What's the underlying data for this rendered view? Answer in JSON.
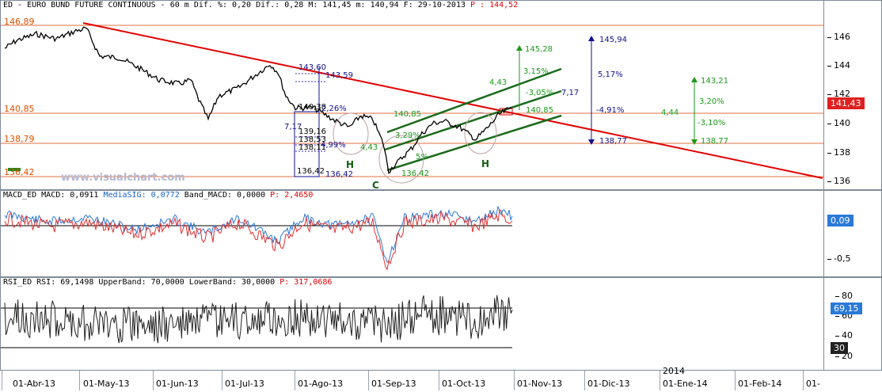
{
  "price": {
    "title_prefix": "ED - EURO BUND FUTURE CONTINUOUS -  60 m Dif. %: 0,20 Dif.: 0,28 M: 141,45 m: 140,94 F: 29-10-2013 ",
    "title_p": "P : 144,52",
    "y_ticks": [
      "146",
      "144",
      "142",
      "140",
      "138",
      "136"
    ],
    "current_badge": "141,43",
    "levels": [
      "146,89",
      "140,85",
      "138,79",
      "136,42"
    ],
    "watermark": "www.visualchart.com",
    "annotations": {
      "a_143_60": "143,60",
      "a_143_59": "143,59",
      "a_140_38": "140,38",
      "a_26": "2,26%",
      "a_717_l": "7,17",
      "a_139_16": "139,16",
      "a_138_53": "138,53",
      "a_138_11": "138,11",
      "a_499": "4,99%",
      "a_136_42a": "136,42",
      "a_136_42b": "136,42",
      "a_443_l": "4,43",
      "a_140_85g": "140,85",
      "a_329": "3,29%",
      "a_5p": "5%",
      "a_136_42c": "136,42",
      "a_145_28": "145,28",
      "a_315": "3,15%",
      "a_443_r": "4,43",
      "a_305": "-3,05%",
      "a_717_r": "7,17",
      "a_140_85r": "140,85",
      "a_145_94": "145,94",
      "a_517": "5,17%",
      "a_491": "-4,91%",
      "a_138_77a": "138,77",
      "a_143_21": "143,21",
      "a_320": "3,20%",
      "a_444": "4,44",
      "a_310": "-3,10%",
      "a_138_77b": "138,77"
    },
    "patterns": {
      "h1": "H",
      "c": "C",
      "h2": "H"
    }
  },
  "macd": {
    "title_prefix": "MACD_ED MACD: 0,0911 ",
    "title_signal": "MediaSIG: 0,0772",
    "title_band": " Band_MACD: 0,0000 ",
    "title_p": "P: 2,4650",
    "badge": "0,09",
    "y_ticks": [
      "-0,5"
    ]
  },
  "rsi": {
    "title_prefix": "RSI_ED RSI: 69,1498 UpperBand: 70,0000 LowerBand: 30,0000 ",
    "title_p": "P: 317,0686",
    "y_ticks": [
      "80",
      "60",
      "40",
      "20"
    ],
    "badge_main": "69,15",
    "badge_lower": "30"
  },
  "dates": {
    "labels": [
      "01-Abr-13",
      "01-May-13",
      "01-Jun-13",
      "01-Jul-13",
      "01-Ago-13",
      "01-Sep-13",
      "01-Oct-13",
      "01-Nov-13",
      "01-Dic-13",
      "01-Ene-14",
      "01-Feb-14",
      "01-"
    ],
    "year": "2014"
  },
  "colors": {
    "trendline": "#e00000",
    "channel": "#1a6a1a",
    "macd_line": "#e03030",
    "signal_line": "#2a7ad8",
    "level_line": "#e07040"
  }
}
